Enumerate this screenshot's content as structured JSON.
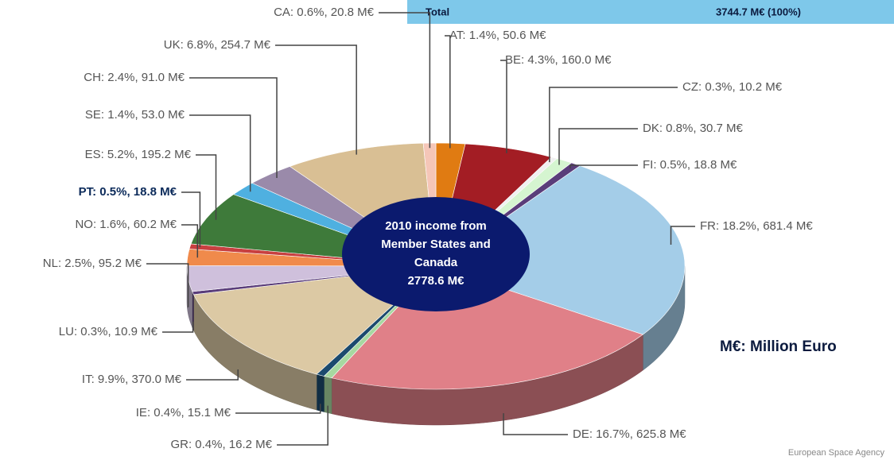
{
  "chart_data": {
    "type": "pie",
    "header": {
      "label": "Total",
      "value_label": "3744.7 M€ (100%)"
    },
    "center_label": [
      "2010 income from",
      "Member States and",
      "Canada",
      "2778.6 M€"
    ],
    "note": "M€: Million Euro",
    "source": "European Space Agency",
    "categories": [
      "AT",
      "BE",
      "CZ",
      "DK",
      "FI",
      "FR",
      "DE",
      "GR",
      "IE",
      "IT",
      "LU",
      "NL",
      "NO",
      "PT",
      "ES",
      "SE",
      "CH",
      "UK",
      "CA"
    ],
    "values": [
      1.4,
      4.3,
      0.3,
      0.8,
      0.5,
      18.2,
      16.7,
      0.4,
      0.4,
      9.9,
      0.3,
      2.5,
      1.6,
      0.5,
      5.2,
      1.4,
      2.4,
      6.8,
      0.6
    ],
    "value_labels": [
      "AT: 1.4%, 50.6 M€",
      "BE: 4.3%, 160.0 M€",
      "CZ: 0.3%, 10.2 M€",
      "DK: 0.8%, 30.7 M€",
      "FI: 0.5%, 18.8 M€",
      "FR: 18.2%, 681.4 M€",
      "DE: 16.7%, 625.8 M€",
      "GR: 0.4%, 16.2 M€",
      "IE: 0.4%, 15.1 M€",
      "IT: 9.9%, 370.0 M€",
      "LU:  0.3%, 10.9 M€",
      "NL: 2.5%, 95.2 M€",
      "NO: 1.6%, 60.2 M€",
      "PT: 0.5%, 18.8 M€",
      "ES: 5.2%, 195.2 M€",
      "SE: 1.4%, 53.0 M€",
      "CH: 2.4%, 91.0 M€",
      "UK: 6.8%, 254.7 M€",
      "CA: 0.6%, 20.8 M€"
    ],
    "colors": [
      "#e07b12",
      "#a31d24",
      "#f0f0f0",
      "#d5f5d0",
      "#5a3d7a",
      "#a4cde8",
      "#e08088",
      "#a7d8a0",
      "#1b4a6e",
      "#dcc9a4",
      "#5a3d7a",
      "#cfc0dc",
      "#f08a4b",
      "#c84040",
      "#3e7a3a",
      "#4fb0e0",
      "#9a8aaa",
      "#d9bf94",
      "#f5c6b8"
    ]
  }
}
